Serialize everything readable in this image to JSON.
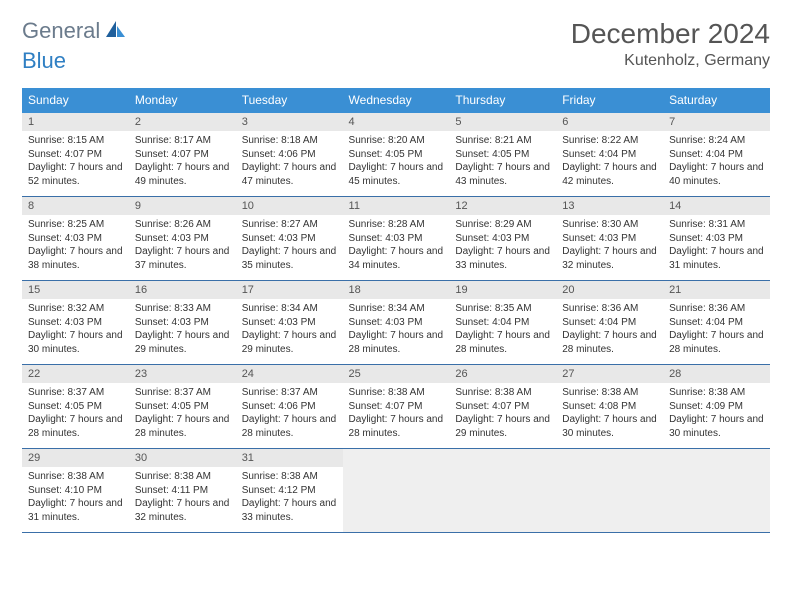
{
  "logo": {
    "general": "General",
    "blue": "Blue"
  },
  "title": "December 2024",
  "location": "Kutenholz, Germany",
  "colors": {
    "header_bg": "#3a8fd4",
    "daynum_bg": "#e8e8e8",
    "row_divider": "#3a6fa8",
    "logo_general": "#6b7b8c",
    "logo_blue": "#2f7fc3"
  },
  "weekdays": [
    "Sunday",
    "Monday",
    "Tuesday",
    "Wednesday",
    "Thursday",
    "Friday",
    "Saturday"
  ],
  "days": [
    {
      "n": "1",
      "sr": "8:15 AM",
      "ss": "4:07 PM",
      "dl": "7 hours and 52 minutes."
    },
    {
      "n": "2",
      "sr": "8:17 AM",
      "ss": "4:07 PM",
      "dl": "7 hours and 49 minutes."
    },
    {
      "n": "3",
      "sr": "8:18 AM",
      "ss": "4:06 PM",
      "dl": "7 hours and 47 minutes."
    },
    {
      "n": "4",
      "sr": "8:20 AM",
      "ss": "4:05 PM",
      "dl": "7 hours and 45 minutes."
    },
    {
      "n": "5",
      "sr": "8:21 AM",
      "ss": "4:05 PM",
      "dl": "7 hours and 43 minutes."
    },
    {
      "n": "6",
      "sr": "8:22 AM",
      "ss": "4:04 PM",
      "dl": "7 hours and 42 minutes."
    },
    {
      "n": "7",
      "sr": "8:24 AM",
      "ss": "4:04 PM",
      "dl": "7 hours and 40 minutes."
    },
    {
      "n": "8",
      "sr": "8:25 AM",
      "ss": "4:03 PM",
      "dl": "7 hours and 38 minutes."
    },
    {
      "n": "9",
      "sr": "8:26 AM",
      "ss": "4:03 PM",
      "dl": "7 hours and 37 minutes."
    },
    {
      "n": "10",
      "sr": "8:27 AM",
      "ss": "4:03 PM",
      "dl": "7 hours and 35 minutes."
    },
    {
      "n": "11",
      "sr": "8:28 AM",
      "ss": "4:03 PM",
      "dl": "7 hours and 34 minutes."
    },
    {
      "n": "12",
      "sr": "8:29 AM",
      "ss": "4:03 PM",
      "dl": "7 hours and 33 minutes."
    },
    {
      "n": "13",
      "sr": "8:30 AM",
      "ss": "4:03 PM",
      "dl": "7 hours and 32 minutes."
    },
    {
      "n": "14",
      "sr": "8:31 AM",
      "ss": "4:03 PM",
      "dl": "7 hours and 31 minutes."
    },
    {
      "n": "15",
      "sr": "8:32 AM",
      "ss": "4:03 PM",
      "dl": "7 hours and 30 minutes."
    },
    {
      "n": "16",
      "sr": "8:33 AM",
      "ss": "4:03 PM",
      "dl": "7 hours and 29 minutes."
    },
    {
      "n": "17",
      "sr": "8:34 AM",
      "ss": "4:03 PM",
      "dl": "7 hours and 29 minutes."
    },
    {
      "n": "18",
      "sr": "8:34 AM",
      "ss": "4:03 PM",
      "dl": "7 hours and 28 minutes."
    },
    {
      "n": "19",
      "sr": "8:35 AM",
      "ss": "4:04 PM",
      "dl": "7 hours and 28 minutes."
    },
    {
      "n": "20",
      "sr": "8:36 AM",
      "ss": "4:04 PM",
      "dl": "7 hours and 28 minutes."
    },
    {
      "n": "21",
      "sr": "8:36 AM",
      "ss": "4:04 PM",
      "dl": "7 hours and 28 minutes."
    },
    {
      "n": "22",
      "sr": "8:37 AM",
      "ss": "4:05 PM",
      "dl": "7 hours and 28 minutes."
    },
    {
      "n": "23",
      "sr": "8:37 AM",
      "ss": "4:05 PM",
      "dl": "7 hours and 28 minutes."
    },
    {
      "n": "24",
      "sr": "8:37 AM",
      "ss": "4:06 PM",
      "dl": "7 hours and 28 minutes."
    },
    {
      "n": "25",
      "sr": "8:38 AM",
      "ss": "4:07 PM",
      "dl": "7 hours and 28 minutes."
    },
    {
      "n": "26",
      "sr": "8:38 AM",
      "ss": "4:07 PM",
      "dl": "7 hours and 29 minutes."
    },
    {
      "n": "27",
      "sr": "8:38 AM",
      "ss": "4:08 PM",
      "dl": "7 hours and 30 minutes."
    },
    {
      "n": "28",
      "sr": "8:38 AM",
      "ss": "4:09 PM",
      "dl": "7 hours and 30 minutes."
    },
    {
      "n": "29",
      "sr": "8:38 AM",
      "ss": "4:10 PM",
      "dl": "7 hours and 31 minutes."
    },
    {
      "n": "30",
      "sr": "8:38 AM",
      "ss": "4:11 PM",
      "dl": "7 hours and 32 minutes."
    },
    {
      "n": "31",
      "sr": "8:38 AM",
      "ss": "4:12 PM",
      "dl": "7 hours and 33 minutes."
    }
  ],
  "labels": {
    "sunrise": "Sunrise:",
    "sunset": "Sunset:",
    "daylight": "Daylight:"
  }
}
